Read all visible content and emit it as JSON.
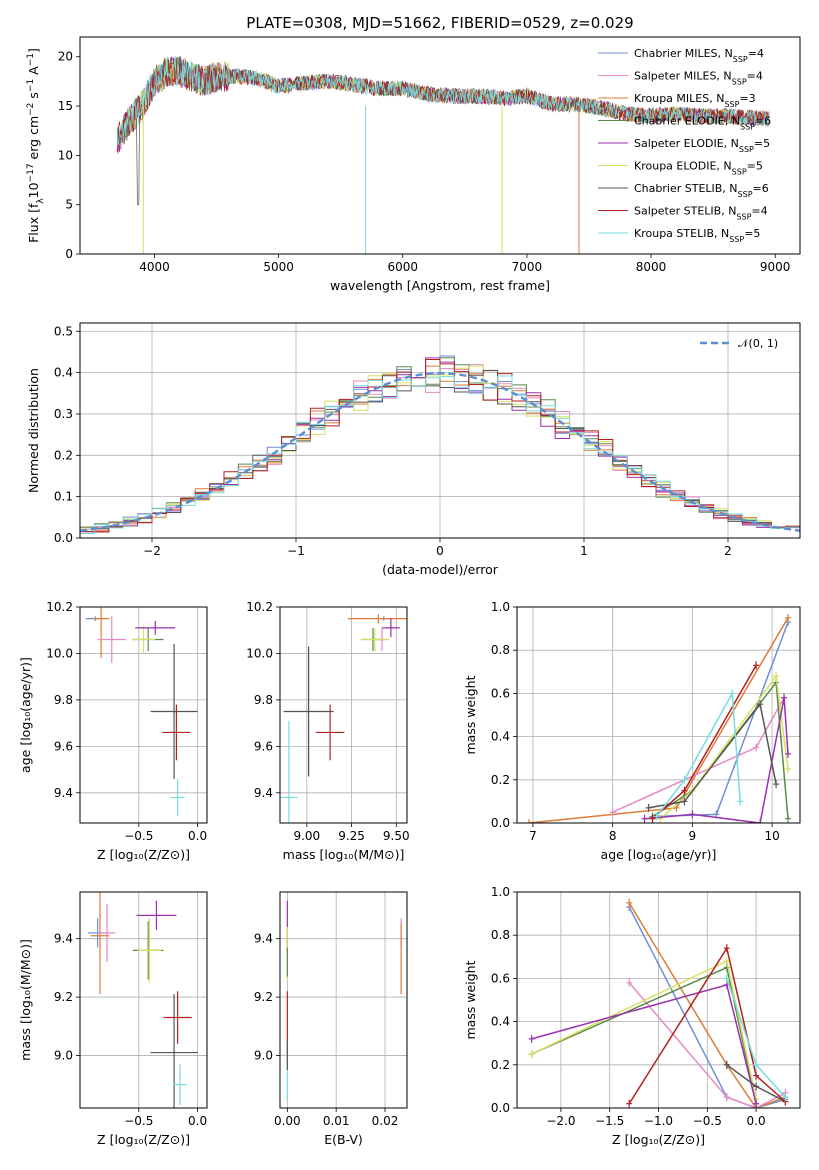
{
  "figure": {
    "title": "PLATE=0308, MJD=51662, FIBERID=0529, z=0.029",
    "colors": {
      "Chabrier MILES": "#6e8fd6",
      "Salpeter MILES": "#e78ac3",
      "Kroupa MILES": "#e07b39",
      "Chabrier ELODIE": "#5a8a4a",
      "Salpeter ELODIE": "#9b30b0",
      "Kroupa ELODIE": "#d8e060",
      "Chabrier STELIB": "#555555",
      "Salpeter STELIB": "#b22222",
      "Kroupa STELIB": "#78dce0"
    }
  },
  "chart_data": [
    {
      "id": "spectrum",
      "type": "line",
      "xlabel": "wavelength [Angstrom, rest frame]",
      "ylabel": "Flux [f",
      "xlim": [
        3400,
        9200
      ],
      "ylim": [
        0,
        22
      ],
      "xticks": [
        4000,
        5000,
        6000,
        7000,
        8000,
        9000
      ],
      "yticks": [
        0,
        5,
        10,
        15,
        20
      ],
      "grid": false,
      "legend_position": "top-right",
      "legend": [
        {
          "base": "Chabrier MILES, N",
          "sub": "SSP",
          "tail": "=4"
        },
        {
          "base": "Salpeter MILES, N",
          "sub": "SSP",
          "tail": "=4"
        },
        {
          "base": "Kroupa MILES, N",
          "sub": "SSP",
          "tail": "=3"
        },
        {
          "base": "Chabrier ELODIE, N",
          "sub": "SSP",
          "tail": "=6"
        },
        {
          "base": "Salpeter ELODIE, N",
          "sub": "SSP",
          "tail": "=5"
        },
        {
          "base": "Kroupa ELODIE, N",
          "sub": "SSP",
          "tail": "=5"
        },
        {
          "base": "Chabrier STELIB, N",
          "sub": "SSP",
          "tail": "=6"
        },
        {
          "base": "Salpeter STELIB, N",
          "sub": "SSP",
          "tail": "=4"
        },
        {
          "base": "Kroupa STELIB, N",
          "sub": "SSP",
          "tail": "=5"
        }
      ],
      "data_x": [
        3700,
        3800,
        3900,
        4000,
        4100,
        4200,
        4300,
        4400,
        4500,
        4600,
        4700,
        4800,
        4900,
        5000,
        5200,
        5400,
        5600,
        5800,
        6000,
        6200,
        6400,
        6600,
        6800,
        7000,
        7200,
        7400,
        7600,
        7800,
        8000,
        8200,
        8400,
        8600,
        8800,
        8950
      ],
      "data_y": [
        11.5,
        13.5,
        15,
        17.5,
        18.5,
        18.5,
        18,
        17.5,
        18,
        18,
        18,
        17.8,
        17.5,
        17,
        17.3,
        17.5,
        17.2,
        16.8,
        16.8,
        16.2,
        16,
        16,
        15.8,
        16,
        15.2,
        15.2,
        14.8,
        14.2,
        14,
        14.2,
        14,
        14,
        13.8,
        13.8
      ]
    },
    {
      "id": "residuals",
      "type": "line",
      "xlabel": "(data-model)/error",
      "ylabel": "Normed distribution",
      "xlim": [
        -2.5,
        2.5
      ],
      "ylim": [
        0,
        0.52
      ],
      "xticks": [
        -2,
        -1,
        0,
        1,
        2
      ],
      "xtick_labels": [
        "−2",
        "−1",
        "0",
        "1",
        "2"
      ],
      "yticks": [
        0.0,
        0.1,
        0.2,
        0.3,
        0.4,
        0.5
      ],
      "ytick_labels": [
        "0.0",
        "0.1",
        "0.2",
        "0.3",
        "0.4",
        "0.5"
      ],
      "grid": true,
      "legend": "𝒩(0, 1)",
      "legend_position": "top-right"
    },
    {
      "id": "age-vs-Z",
      "type": "scatter",
      "xlabel": "Z [log₁₀(Z/Z⊙)]",
      "ylabel": "age  [log₁₀(age/yr)]",
      "xlim": [
        -1.0,
        0.08
      ],
      "ylim": [
        9.27,
        10.2
      ],
      "xticks": [
        -0.5,
        0.0
      ],
      "xtick_labels": [
        "−0.5",
        "0.0"
      ],
      "yticks": [
        9.4,
        9.6,
        9.8,
        10.0,
        10.2
      ],
      "ytick_labels": [
        "9.4",
        "9.6",
        "9.8",
        "10.0",
        "10.2"
      ],
      "grid": true,
      "points": [
        {
          "s": "Chabrier MILES",
          "x": -0.87,
          "y": 10.15,
          "xe": 0.08,
          "ye": 0.01
        },
        {
          "s": "Kroupa MILES",
          "x": -0.82,
          "y": 10.15,
          "xe": 0.07,
          "ye": 0.17
        },
        {
          "s": "Salpeter MILES",
          "x": -0.73,
          "y": 10.06,
          "xe": 0.12,
          "ye": 0.1
        },
        {
          "s": "Chabrier ELODIE",
          "x": -0.42,
          "y": 10.06,
          "xe": 0.13,
          "ye": 0.05
        },
        {
          "s": "Kroupa ELODIE",
          "x": -0.46,
          "y": 10.06,
          "xe": 0.1,
          "ye": 0.06
        },
        {
          "s": "Salpeter ELODIE",
          "x": -0.36,
          "y": 10.11,
          "xe": 0.17,
          "ye": 0.03
        },
        {
          "s": "Chabrier STELIB",
          "x": -0.2,
          "y": 9.75,
          "xe": 0.2,
          "ye": 0.29
        },
        {
          "s": "Salpeter STELIB",
          "x": -0.18,
          "y": 9.66,
          "xe": 0.12,
          "ye": 0.12
        },
        {
          "s": "Kroupa STELIB",
          "x": -0.17,
          "y": 9.38,
          "xe": 0.06,
          "ye": 0.08
        }
      ]
    },
    {
      "id": "age-vs-mass",
      "type": "scatter",
      "xlabel": "mass [log₁₀(M/M⊙)]",
      "ylabel": "",
      "xlim": [
        8.85,
        9.56
      ],
      "ylim": [
        9.27,
        10.2
      ],
      "xticks": [
        9.0,
        9.25,
        9.5
      ],
      "xtick_labels": [
        "9.00",
        "9.25",
        "9.50"
      ],
      "yticks": [
        9.4,
        9.6,
        9.8,
        10.0,
        10.2
      ],
      "ytick_labels": [
        "9.4",
        "9.6",
        "9.8",
        "10.0",
        "10.2"
      ],
      "grid": true,
      "points": [
        {
          "s": "Chabrier MILES",
          "x": 9.43,
          "y": 10.15,
          "xe": 0.05,
          "ye": 0.01
        },
        {
          "s": "Kroupa MILES",
          "x": 9.4,
          "y": 10.15,
          "xe": 0.17,
          "ye": 0.02
        },
        {
          "s": "Salpeter MILES",
          "x": 9.42,
          "y": 10.06,
          "xe": 0.04,
          "ye": 0.05
        },
        {
          "s": "Chabrier ELODIE",
          "x": 9.37,
          "y": 10.06,
          "xe": 0.06,
          "ye": 0.05
        },
        {
          "s": "Kroupa ELODIE",
          "x": 9.38,
          "y": 10.06,
          "xe": 0.08,
          "ye": 0.05
        },
        {
          "s": "Salpeter ELODIE",
          "x": 9.47,
          "y": 10.11,
          "xe": 0.05,
          "ye": 0.04
        },
        {
          "s": "Chabrier STELIB",
          "x": 9.01,
          "y": 9.75,
          "xe": 0.14,
          "ye": 0.28
        },
        {
          "s": "Salpeter STELIB",
          "x": 9.13,
          "y": 9.66,
          "xe": 0.08,
          "ye": 0.12
        },
        {
          "s": "Kroupa STELIB",
          "x": 8.9,
          "y": 9.38,
          "xe": 0.05,
          "ye": 0.33
        }
      ]
    },
    {
      "id": "mass-weight-vs-age",
      "type": "line",
      "xlabel": "age  [log₁₀(age/yr)]",
      "ylabel": "mass weight",
      "xlim": [
        6.8,
        10.35
      ],
      "ylim": [
        0,
        1.0
      ],
      "xticks": [
        7,
        8,
        9,
        10
      ],
      "yticks": [
        0.0,
        0.2,
        0.4,
        0.6,
        0.8,
        1.0
      ],
      "ytick_labels": [
        "0.0",
        "0.2",
        "0.4",
        "0.6",
        "0.8",
        "1.0"
      ],
      "grid": true,
      "series": [
        {
          "s": "Chabrier MILES",
          "x": [
            8.5,
            9.3,
            10.2
          ],
          "y": [
            0.03,
            0.04,
            0.93
          ]
        },
        {
          "s": "Kroupa MILES",
          "x": [
            6.95,
            8.8,
            10.2
          ],
          "y": [
            0.0,
            0.07,
            0.95
          ]
        },
        {
          "s": "Salpeter MILES",
          "x": [
            8.0,
            9.8,
            10.15
          ],
          "y": [
            0.05,
            0.35,
            0.58
          ]
        },
        {
          "s": "Chabrier ELODIE",
          "x": [
            8.5,
            9.0,
            10.05,
            10.2
          ],
          "y": [
            0.03,
            0.15,
            0.65,
            0.02
          ]
        },
        {
          "s": "Kroupa ELODIE",
          "x": [
            8.6,
            9.0,
            10.05,
            10.2
          ],
          "y": [
            0.02,
            0.15,
            0.68,
            0.25
          ]
        },
        {
          "s": "Salpeter ELODIE",
          "x": [
            8.4,
            9.0,
            9.85,
            10.15,
            10.2
          ],
          "y": [
            0.02,
            0.04,
            0.0,
            0.58,
            0.32
          ]
        },
        {
          "s": "Chabrier STELIB",
          "x": [
            8.45,
            8.9,
            9.85,
            10.05
          ],
          "y": [
            0.07,
            0.1,
            0.55,
            0.18
          ]
        },
        {
          "s": "Salpeter STELIB",
          "x": [
            8.5,
            8.9,
            9.8
          ],
          "y": [
            0.02,
            0.15,
            0.73
          ]
        },
        {
          "s": "Kroupa STELIB",
          "x": [
            8.55,
            8.9,
            9.5,
            9.6
          ],
          "y": [
            0.03,
            0.2,
            0.6,
            0.1
          ]
        }
      ]
    },
    {
      "id": "mass-vs-Z",
      "type": "scatter",
      "xlabel": "Z [log₁₀(Z/Z⊙)]",
      "ylabel": "mass [log₁₀(M/M⊙)]",
      "xlim": [
        -1.0,
        0.08
      ],
      "ylim": [
        8.82,
        9.56
      ],
      "xticks": [
        -0.5,
        0.0
      ],
      "xtick_labels": [
        "−0.5",
        "0.0"
      ],
      "yticks": [
        9.0,
        9.2,
        9.4
      ],
      "ytick_labels": [
        "9.0",
        "9.2",
        "9.4"
      ],
      "grid": true,
      "points": [
        {
          "s": "Chabrier MILES",
          "x": -0.85,
          "y": 9.42,
          "xe": 0.08,
          "ye": 0.05
        },
        {
          "s": "Kroupa MILES",
          "x": -0.83,
          "y": 9.41,
          "xe": 0.08,
          "ye": 0.2
        },
        {
          "s": "Salpeter MILES",
          "x": -0.77,
          "y": 9.42,
          "xe": 0.07,
          "ye": 0.1
        },
        {
          "s": "Chabrier ELODIE",
          "x": -0.42,
          "y": 9.36,
          "xe": 0.13,
          "ye": 0.1
        },
        {
          "s": "Kroupa ELODIE",
          "x": -0.41,
          "y": 9.36,
          "xe": 0.1,
          "ye": 0.11
        },
        {
          "s": "Salpeter ELODIE",
          "x": -0.35,
          "y": 9.48,
          "xe": 0.17,
          "ye": 0.05
        },
        {
          "s": "Chabrier STELIB",
          "x": -0.2,
          "y": 9.01,
          "xe": 0.2,
          "ye": 0.2
        },
        {
          "s": "Salpeter STELIB",
          "x": -0.17,
          "y": 9.13,
          "xe": 0.12,
          "ye": 0.09
        },
        {
          "s": "Kroupa STELIB",
          "x": -0.15,
          "y": 8.9,
          "xe": 0.06,
          "ye": 0.07
        }
      ]
    },
    {
      "id": "ebv",
      "type": "scatter",
      "xlabel": "E(B-V)",
      "ylabel": "",
      "xlim": [
        -0.0015,
        0.0245
      ],
      "ylim": [
        8.82,
        9.56
      ],
      "xticks": [
        0.0,
        0.01,
        0.02
      ],
      "xtick_labels": [
        "0.00",
        "0.01",
        "0.02"
      ],
      "yticks": [
        9.0,
        9.2,
        9.4
      ],
      "ytick_labels": [
        "9.0",
        "9.2",
        "9.4"
      ],
      "grid": true,
      "points": [
        {
          "s": "Salpeter ELODIE",
          "x": 0.0,
          "y": 9.45,
          "xe": 0.0,
          "ye": 0.08
        },
        {
          "s": "Kroupa ELODIE",
          "x": 0.0,
          "y": 9.35,
          "xe": 0.0,
          "ye": 0.09
        },
        {
          "s": "Chabrier ELODIE",
          "x": 0.0,
          "y": 9.32,
          "xe": 0.0,
          "ye": 0.05
        },
        {
          "s": "Salpeter STELIB",
          "x": 0.0,
          "y": 9.1,
          "xe": 0.0,
          "ye": 0.12
        },
        {
          "s": "Kroupa STELIB",
          "x": 0.0,
          "y": 8.95,
          "xe": 0.0,
          "ye": 0.1
        },
        {
          "s": "Chabrier STELIB",
          "x": 0.0,
          "y": 9.0,
          "xe": 0.0,
          "ye": 0.05
        },
        {
          "s": "Salpeter MILES",
          "x": 0.0233,
          "y": 9.42,
          "xe": 0.0,
          "ye": 0.05
        },
        {
          "s": "Kroupa MILES",
          "x": 0.0233,
          "y": 9.33,
          "xe": 0.0,
          "ye": 0.12
        }
      ]
    },
    {
      "id": "mass-weight-vs-Z",
      "type": "line",
      "xlabel": "Z [log₁₀(Z/Z⊙)]",
      "ylabel": "mass weight",
      "xlim": [
        -2.45,
        0.45
      ],
      "ylim": [
        0,
        1.0
      ],
      "xticks": [
        -2.0,
        -1.5,
        -1.0,
        -0.5,
        0.0
      ],
      "xtick_labels": [
        "−2.0",
        "−1.5",
        "−1.0",
        "−0.5",
        "0.0"
      ],
      "yticks": [
        0.0,
        0.2,
        0.4,
        0.6,
        0.8,
        1.0
      ],
      "ytick_labels": [
        "0.0",
        "0.2",
        "0.4",
        "0.6",
        "0.8",
        "1.0"
      ],
      "grid": true,
      "series": [
        {
          "s": "Chabrier MILES",
          "x": [
            -1.3,
            -0.3,
            0.0,
            0.3
          ],
          "y": [
            0.93,
            0.05,
            0.0,
            0.04
          ]
        },
        {
          "s": "Kroupa MILES",
          "x": [
            -1.3,
            -0.3,
            0.0,
            0.3
          ],
          "y": [
            0.95,
            0.2,
            0.0,
            0.05
          ]
        },
        {
          "s": "Salpeter MILES",
          "x": [
            -1.3,
            -0.3,
            0.0,
            0.3
          ],
          "y": [
            0.58,
            0.05,
            0.0,
            0.07
          ]
        },
        {
          "s": "Chabrier ELODIE",
          "x": [
            -2.3,
            -0.3,
            0.0
          ],
          "y": [
            0.25,
            0.65,
            0.02
          ]
        },
        {
          "s": "Kroupa ELODIE",
          "x": [
            -2.3,
            -0.3,
            0.0
          ],
          "y": [
            0.25,
            0.68,
            0.04
          ]
        },
        {
          "s": "Salpeter ELODIE",
          "x": [
            -2.3,
            -0.3,
            0.0
          ],
          "y": [
            0.32,
            0.57,
            0.02
          ]
        },
        {
          "s": "Chabrier STELIB",
          "x": [
            -0.3,
            0.0,
            0.3
          ],
          "y": [
            0.2,
            0.1,
            0.03
          ]
        },
        {
          "s": "Salpeter STELIB",
          "x": [
            -1.3,
            -0.3,
            0.0,
            0.3
          ],
          "y": [
            0.02,
            0.74,
            0.15,
            0.03
          ]
        },
        {
          "s": "Kroupa STELIB",
          "x": [
            -0.3,
            0.0,
            0.3
          ],
          "y": [
            0.6,
            0.2,
            0.05
          ]
        }
      ]
    }
  ]
}
